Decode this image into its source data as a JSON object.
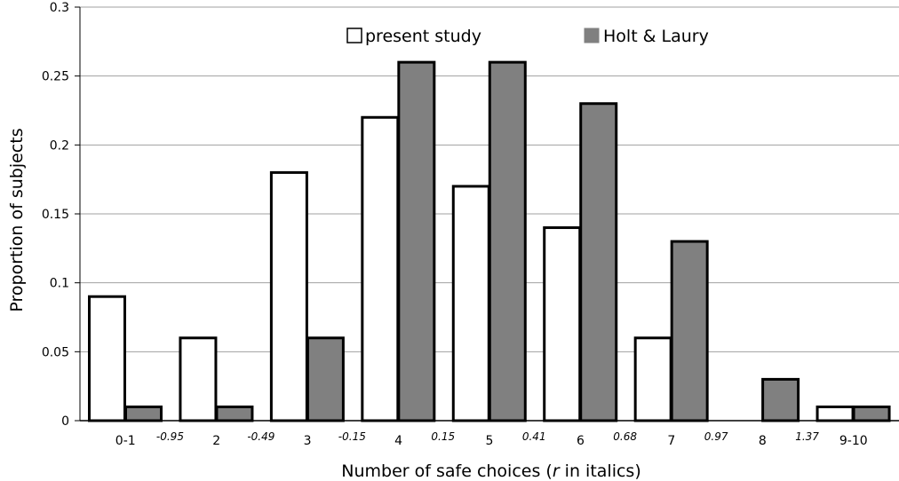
{
  "chart_data": {
    "type": "bar",
    "categories": [
      "0-1",
      "2",
      "3",
      "4",
      "5",
      "6",
      "7",
      "8",
      "9-10"
    ],
    "series": [
      {
        "name": "present study",
        "color": "#ffffff",
        "values": [
          0.09,
          0.06,
          0.18,
          0.22,
          0.17,
          0.14,
          0.06,
          0.0,
          0.01
        ]
      },
      {
        "name": "Holt & Laury",
        "color": "#808080",
        "values": [
          0.01,
          0.01,
          0.06,
          0.26,
          0.26,
          0.23,
          0.13,
          0.03,
          0.01
        ]
      }
    ],
    "r_labels": [
      "-0.95",
      "-0.49",
      "-0.15",
      "0.15",
      "0.41",
      "0.68",
      "0.97",
      "1.37"
    ],
    "yticks": [
      "0",
      "0.05",
      "0.1",
      "0.15",
      "0.2",
      "0.25",
      "0.3"
    ],
    "ylim": [
      0,
      0.3
    ],
    "xlabel": "Number of safe choices (",
    "xlabel_italic": "r",
    "xlabel_suffix": " in italics)",
    "ylabel": "Proportion of subjects",
    "grid": true,
    "legend_position": "top-center"
  }
}
